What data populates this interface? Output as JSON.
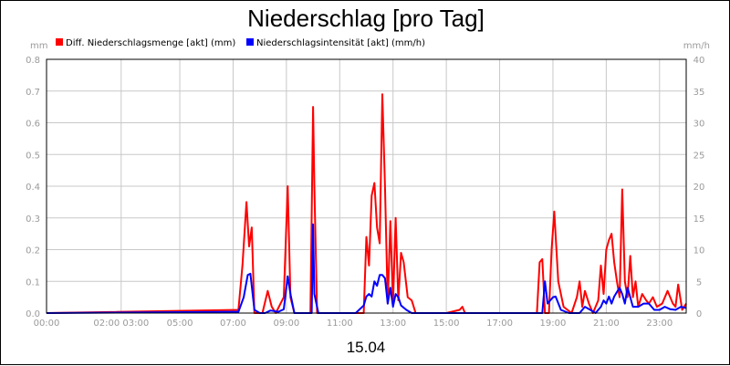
{
  "chart_data": {
    "type": "line",
    "title": "Niederschlag [pro Tag]",
    "date_label": "15.04",
    "y_left_unit": "mm",
    "y_right_unit": "mm/h",
    "ylim_left": [
      0,
      0.8
    ],
    "ylim_right": [
      0,
      40
    ],
    "y_left_ticks": [
      "0.0",
      "0.1",
      "0.2",
      "0.3",
      "0.4",
      "0.5",
      "0.6",
      "0.7",
      "0.8"
    ],
    "y_right_ticks": [
      "0",
      "5",
      "10",
      "15",
      "20",
      "25",
      "30",
      "35",
      "40"
    ],
    "x_range_hours": [
      0,
      24
    ],
    "x_ticks": [
      {
        "hour": 0,
        "label": "00:00"
      },
      {
        "hour": 2.8,
        "label": "02:00 03:00"
      },
      {
        "hour": 5,
        "label": "05:00"
      },
      {
        "hour": 7,
        "label": "07:00"
      },
      {
        "hour": 9,
        "label": "09:00"
      },
      {
        "hour": 11,
        "label": "11:00"
      },
      {
        "hour": 13,
        "label": "13:00"
      },
      {
        "hour": 15,
        "label": "15:00"
      },
      {
        "hour": 17,
        "label": "17:00"
      },
      {
        "hour": 19,
        "label": "19:00"
      },
      {
        "hour": 21,
        "label": "21:00"
      },
      {
        "hour": 23,
        "label": "23:00"
      }
    ],
    "grid": true,
    "legend_position": "top-left",
    "series": [
      {
        "name": "Diff. Niederschlagsmenge [akt] (mm)",
        "axis": "left",
        "color": "#ff0000",
        "x": [
          0,
          7.2,
          7.35,
          7.5,
          7.6,
          7.7,
          7.8,
          7.9,
          8.1,
          8.3,
          8.45,
          8.6,
          8.9,
          9.05,
          9.15,
          9.3,
          9.5,
          9.9,
          10.0,
          10.05,
          10.15,
          10.3,
          11.0,
          11.9,
          12.0,
          12.1,
          12.2,
          12.3,
          12.4,
          12.5,
          12.6,
          12.7,
          12.8,
          12.9,
          13.0,
          13.1,
          13.2,
          13.3,
          13.4,
          13.55,
          13.7,
          13.85,
          14.0,
          15.0,
          15.5,
          15.6,
          15.7,
          16.0,
          18.4,
          18.5,
          18.6,
          18.7,
          18.85,
          18.95,
          19.05,
          19.2,
          19.4,
          19.7,
          19.9,
          20.0,
          20.1,
          20.2,
          20.35,
          20.5,
          20.7,
          20.8,
          20.9,
          21.0,
          21.1,
          21.2,
          21.3,
          21.4,
          21.5,
          21.6,
          21.7,
          21.8,
          21.9,
          22.0,
          22.1,
          22.2,
          22.35,
          22.5,
          22.6,
          22.75,
          22.9,
          23.1,
          23.3,
          23.5,
          23.6,
          23.7,
          23.85,
          24.0
        ],
        "values": [
          0,
          0.01,
          0.15,
          0.35,
          0.21,
          0.27,
          0.0,
          0.0,
          0.0,
          0.07,
          0.02,
          0.0,
          0.05,
          0.4,
          0.05,
          0.0,
          0.0,
          0.0,
          0.65,
          0.4,
          0.0,
          0.0,
          0.0,
          0.0,
          0.24,
          0.15,
          0.37,
          0.41,
          0.27,
          0.22,
          0.69,
          0.4,
          0.03,
          0.29,
          0.03,
          0.3,
          0.04,
          0.19,
          0.16,
          0.05,
          0.04,
          0.0,
          0.0,
          0.0,
          0.01,
          0.02,
          0.0,
          0.0,
          0.0,
          0.16,
          0.17,
          0.0,
          0.0,
          0.2,
          0.32,
          0.1,
          0.02,
          0.0,
          0.05,
          0.1,
          0.02,
          0.07,
          0.03,
          0.0,
          0.04,
          0.15,
          0.06,
          0.2,
          0.23,
          0.25,
          0.16,
          0.1,
          0.05,
          0.39,
          0.1,
          0.05,
          0.18,
          0.05,
          0.1,
          0.02,
          0.06,
          0.04,
          0.03,
          0.05,
          0.02,
          0.03,
          0.07,
          0.03,
          0.02,
          0.09,
          0.01,
          0.03
        ]
      },
      {
        "name": "Niederschlagsintensität [akt] (mm/h)",
        "axis": "right",
        "color": "#0000ff",
        "x": [
          0,
          7.2,
          7.4,
          7.55,
          7.65,
          7.8,
          8.0,
          8.2,
          8.4,
          8.7,
          8.9,
          9.05,
          9.15,
          9.3,
          9.6,
          9.95,
          10.0,
          10.05,
          10.2,
          11.6,
          11.9,
          12.0,
          12.1,
          12.2,
          12.3,
          12.4,
          12.5,
          12.6,
          12.7,
          12.8,
          12.9,
          13.0,
          13.1,
          13.2,
          13.3,
          13.5,
          13.7,
          14.0,
          18.6,
          18.7,
          18.8,
          19.0,
          19.1,
          19.3,
          19.6,
          20.0,
          20.2,
          20.4,
          20.6,
          20.8,
          20.9,
          21.0,
          21.1,
          21.2,
          21.3,
          21.5,
          21.6,
          21.7,
          21.8,
          21.9,
          22.0,
          22.2,
          22.4,
          22.6,
          22.8,
          23.0,
          23.2,
          23.4,
          23.6,
          23.8,
          24.0
        ],
        "values": [
          0,
          0.2,
          2.5,
          6.0,
          6.2,
          0.5,
          0.0,
          0.0,
          0.4,
          0.2,
          0.6,
          5.8,
          3.0,
          0.0,
          0.0,
          0.0,
          14.0,
          3.0,
          0.0,
          0.0,
          1.2,
          2.6,
          3.0,
          2.6,
          5.0,
          4.3,
          6.0,
          6.0,
          5.5,
          1.5,
          4.0,
          1.0,
          3.0,
          2.5,
          1.2,
          0.5,
          0.0,
          0.0,
          0.0,
          5.0,
          1.5,
          2.5,
          2.6,
          0.5,
          0.0,
          0.0,
          1.0,
          0.5,
          0.0,
          1.0,
          2.0,
          1.5,
          2.6,
          1.5,
          2.6,
          4.0,
          3.0,
          1.5,
          4.0,
          2.5,
          1.0,
          1.0,
          1.5,
          1.5,
          0.5,
          0.5,
          1.0,
          0.6,
          0.5,
          1.0,
          0.8
        ]
      }
    ]
  }
}
